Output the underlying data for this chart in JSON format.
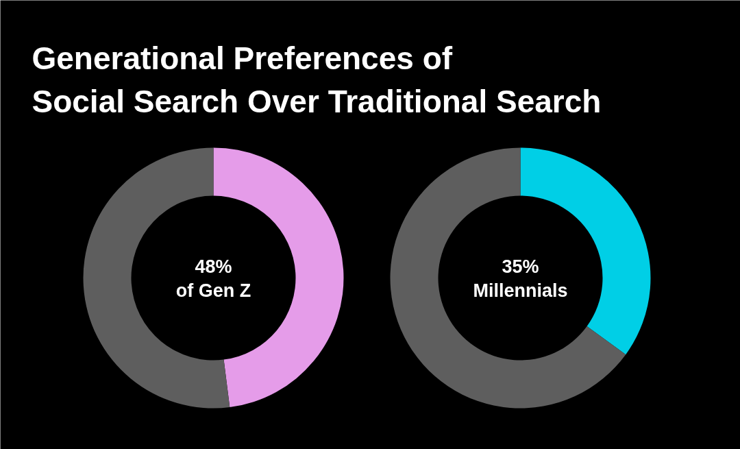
{
  "chart_data": [
    {
      "type": "donut",
      "title": "Generational Preferences of\nSocial Search Over Traditional Search",
      "categories": [
        "of Gen Z",
        null
      ],
      "values": [
        48,
        52
      ],
      "colors": [
        "#e59ce9",
        "#5e5e5e"
      ],
      "value_labels": [
        "48%",
        null
      ]
    },
    {
      "type": "donut",
      "categories": [
        "Millennials",
        null
      ],
      "values": [
        35,
        65
      ],
      "colors": [
        "#00cfe6",
        "#5e5e5e"
      ],
      "value_labels": [
        "35%",
        null
      ]
    }
  ]
}
